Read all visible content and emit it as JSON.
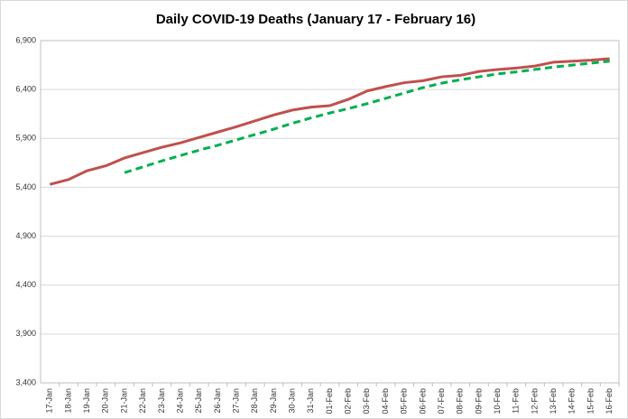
{
  "chart_data": {
    "type": "line",
    "title": "Daily COVID-19 Deaths (January 17 - February 16)",
    "categories": [
      "17-Jan",
      "18-Jan",
      "19-Jan",
      "20-Jan",
      "21-Jan",
      "22-Jan",
      "23-Jan",
      "24-Jan",
      "25-Jan",
      "26-Jan",
      "27-Jan",
      "28-Jan",
      "29-Jan",
      "30-Jan",
      "31-Jan",
      "01-Feb",
      "02-Feb",
      "03-Feb",
      "04-Feb",
      "05-Feb",
      "06-Feb",
      "07-Feb",
      "08-Feb",
      "09-Feb",
      "10-Feb",
      "11-Feb",
      "12-Feb",
      "13-Feb",
      "14-Feb",
      "15-Feb",
      "16-Feb"
    ],
    "series": [
      {
        "color": "#c0504d",
        "dashed": false,
        "values": [
          5430,
          5480,
          5570,
          5620,
          5700,
          5755,
          5810,
          5855,
          5910,
          5965,
          6020,
          6080,
          6140,
          6190,
          6220,
          6235,
          6300,
          6385,
          6430,
          6470,
          6490,
          6530,
          6545,
          6585,
          6605,
          6620,
          6640,
          6680,
          6690,
          6700,
          6715
        ]
      },
      {
        "color": "#00b050",
        "dashed": true,
        "values": [
          null,
          null,
          null,
          null,
          5550,
          5610,
          5670,
          5725,
          5780,
          5830,
          5885,
          5940,
          5995,
          6055,
          6110,
          6160,
          6205,
          6255,
          6310,
          6365,
          6420,
          6465,
          6500,
          6530,
          6560,
          6580,
          6605,
          6630,
          6650,
          6670,
          6690
        ]
      }
    ],
    "ylim": [
      3400,
      6900
    ],
    "yticks": [
      {
        "value": 3400,
        "label": "3,400"
      },
      {
        "value": 3900,
        "label": "3,900"
      },
      {
        "value": 4400,
        "label": "4,400"
      },
      {
        "value": 4900,
        "label": "4,900"
      },
      {
        "value": 5400,
        "label": "5,400"
      },
      {
        "value": 5900,
        "label": "5,900"
      },
      {
        "value": 6400,
        "label": "6,400"
      },
      {
        "value": 6900,
        "label": "6,900"
      }
    ],
    "grid": true
  }
}
